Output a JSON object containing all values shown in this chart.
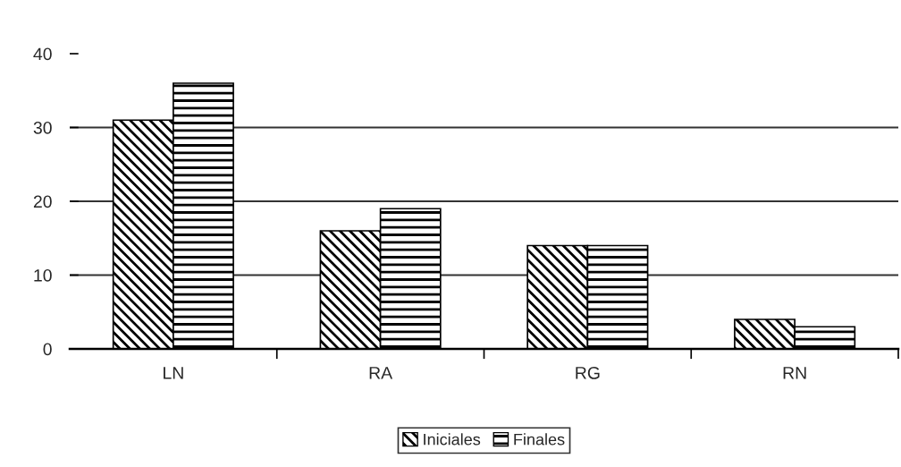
{
  "chart_data": {
    "type": "bar",
    "categories": [
      "LN",
      "RA",
      "RG",
      "RN"
    ],
    "series": [
      {
        "name": "Iniciales",
        "color": "#000000",
        "values": [
          31,
          16,
          14,
          4
        ]
      },
      {
        "name": "Finales",
        "color": "#000000",
        "values": [
          36,
          19,
          14,
          3
        ]
      }
    ],
    "ylim": [
      0,
      40
    ],
    "yticks": [
      0,
      10,
      20,
      30,
      40
    ],
    "grid": "y",
    "legend": "bottom"
  }
}
